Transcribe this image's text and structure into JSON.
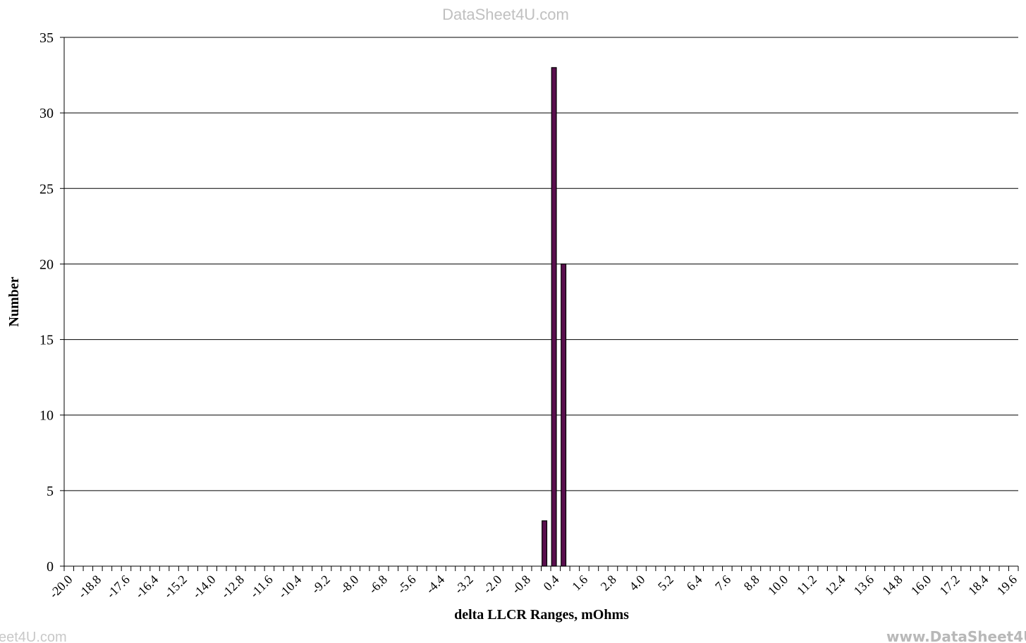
{
  "watermarks": {
    "top": "DataSheet4U.com",
    "bottom_left": "eet4U.com",
    "bottom_right": "www.DataSheet4U"
  },
  "chart_data": {
    "type": "bar",
    "xlabel": "delta LLCR Ranges, mOhms",
    "ylabel": "Number",
    "ylim": [
      0,
      35
    ],
    "y_ticks": [
      0,
      5,
      10,
      15,
      20,
      25,
      30,
      35
    ],
    "x_range": [
      -20.0,
      20.0
    ],
    "bin_width": 0.4,
    "x_tick_labels": [
      "-20.0",
      "-18.8",
      "-17.6",
      "-16.4",
      "-15.2",
      "-14.0",
      "-12.8",
      "-11.6",
      "-10.4",
      "-9.2",
      "-8.0",
      "-6.8",
      "-5.6",
      "-4.4",
      "-3.2",
      "-2.0",
      "-0.8",
      "0.4",
      "1.6",
      "2.8",
      "4.0",
      "5.2",
      "6.4",
      "7.6",
      "8.8",
      "10.0",
      "11.2",
      "12.4",
      "13.6",
      "14.8",
      "16.0",
      "17.2",
      "18.4",
      "19.6"
    ],
    "bars": [
      {
        "x": 0.0,
        "value": 3
      },
      {
        "x": 0.4,
        "value": 33
      },
      {
        "x": 0.8,
        "value": 20
      }
    ],
    "grid": true,
    "legend": "none",
    "colors": {
      "bar_fill": "#5a0f4e",
      "bar_stroke": "#000000",
      "grid": "#000000"
    }
  }
}
